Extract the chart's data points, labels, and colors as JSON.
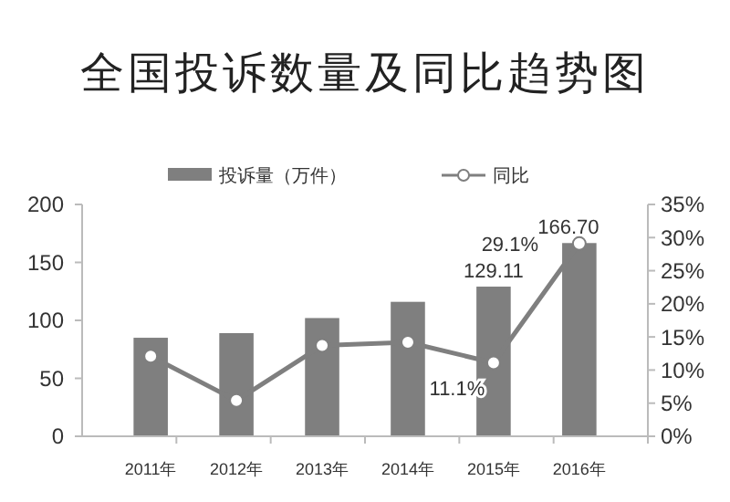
{
  "chart_data": {
    "type": "bar",
    "title": "全国投诉数量及同比趋势图",
    "categories": [
      "2011年",
      "2012年",
      "2013年",
      "2014年",
      "2015年",
      "2016年"
    ],
    "series": [
      {
        "name": "投诉量（万件）",
        "color": "#7f7f7f",
        "values": [
          85,
          89,
          102,
          116,
          129.11,
          166.7
        ],
        "value_labels": [
          null,
          null,
          null,
          null,
          "129.11",
          "166.70"
        ]
      },
      {
        "name": "同比",
        "type": "line",
        "axis": "y2",
        "color": "#7f7f7f",
        "marker": "circle",
        "values": [
          12.1,
          5.4,
          13.7,
          14.2,
          11.1,
          29.1
        ],
        "value_labels": [
          null,
          null,
          null,
          null,
          "11.1%",
          "29.1%"
        ]
      }
    ],
    "ylim": [
      0,
      200
    ],
    "yticks": [
      0,
      50,
      100,
      150,
      200
    ],
    "y2lim": [
      0,
      35
    ],
    "y2ticks": [
      {
        "value": 0,
        "label": "0%"
      },
      {
        "value": 5,
        "label": "5%"
      },
      {
        "value": 10,
        "label": "10%"
      },
      {
        "value": 15,
        "label": "15%"
      },
      {
        "value": 20,
        "label": "20%"
      },
      {
        "value": 25,
        "label": "25%"
      },
      {
        "value": 30,
        "label": "30%"
      },
      {
        "value": 35,
        "label": "35%"
      }
    ],
    "legend": "top",
    "grid": false
  }
}
